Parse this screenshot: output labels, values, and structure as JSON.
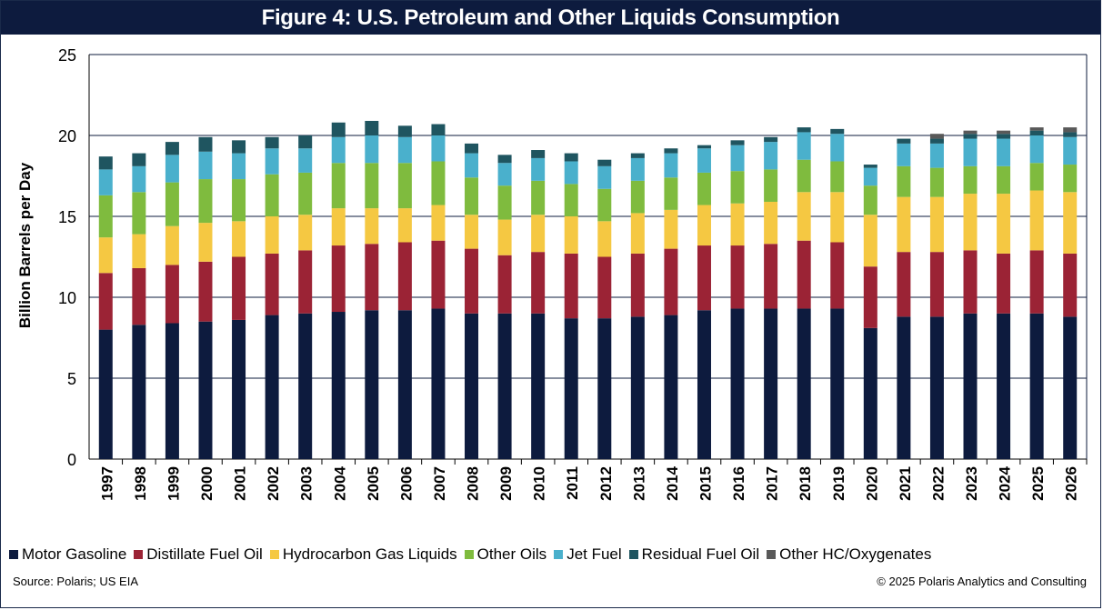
{
  "title": "Figure 4: U.S. Petroleum and Other Liquids Consumption",
  "source": "Source: Polaris; US EIA",
  "credit": "© 2025 Polaris Analytics and Consulting",
  "chart_data": {
    "type": "bar",
    "stacked": true,
    "title": "Figure 4: U.S. Petroleum and Other Liquids Consumption",
    "xlabel": "",
    "ylabel": "Billion Barrels per Day",
    "ylim": [
      0,
      25
    ],
    "yticks": [
      "0",
      "5",
      "10",
      "15",
      "20",
      "25"
    ],
    "grid": "horizontal",
    "legend_position": "bottom",
    "categories": [
      "1997",
      "1998",
      "1999",
      "2000",
      "2001",
      "2002",
      "2003",
      "2004",
      "2005",
      "2006",
      "2007",
      "2008",
      "2009",
      "2010",
      "2011",
      "2012",
      "2013",
      "2014",
      "2015",
      "2016",
      "2017",
      "2018",
      "2019",
      "2020",
      "2021",
      "2022",
      "2023",
      "2024",
      "2025",
      "2026"
    ],
    "series": [
      {
        "name": "Motor Gasoline",
        "color": "#0d1b3e",
        "values": [
          8.0,
          8.3,
          8.4,
          8.5,
          8.6,
          8.9,
          9.0,
          9.1,
          9.2,
          9.2,
          9.3,
          9.0,
          9.0,
          9.0,
          8.7,
          8.7,
          8.8,
          8.9,
          9.2,
          9.3,
          9.3,
          9.3,
          9.3,
          8.1,
          8.8,
          8.8,
          9.0,
          9.0,
          9.0,
          8.8
        ]
      },
      {
        "name": "Distillate Fuel Oil",
        "color": "#9b2335",
        "values": [
          3.5,
          3.5,
          3.6,
          3.7,
          3.9,
          3.8,
          3.9,
          4.1,
          4.1,
          4.2,
          4.2,
          4.0,
          3.6,
          3.8,
          4.0,
          3.8,
          3.9,
          4.1,
          4.0,
          3.9,
          4.0,
          4.2,
          4.1,
          3.8,
          4.0,
          4.0,
          3.9,
          3.7,
          3.9,
          3.9
        ]
      },
      {
        "name": "Hydrocarbon Gas Liquids",
        "color": "#f5c842",
        "values": [
          2.2,
          2.1,
          2.4,
          2.4,
          2.2,
          2.3,
          2.2,
          2.3,
          2.2,
          2.1,
          2.2,
          2.1,
          2.2,
          2.3,
          2.3,
          2.2,
          2.5,
          2.4,
          2.5,
          2.6,
          2.6,
          3.0,
          3.1,
          3.2,
          3.4,
          3.4,
          3.5,
          3.7,
          3.7,
          3.8
        ]
      },
      {
        "name": "Other Oils",
        "color": "#7fbb3e",
        "values": [
          2.6,
          2.6,
          2.7,
          2.7,
          2.6,
          2.6,
          2.6,
          2.8,
          2.8,
          2.8,
          2.7,
          2.3,
          2.1,
          2.1,
          2.0,
          2.0,
          2.0,
          2.0,
          2.0,
          2.0,
          2.0,
          2.0,
          1.9,
          1.8,
          1.9,
          1.8,
          1.7,
          1.7,
          1.7,
          1.7
        ]
      },
      {
        "name": "Jet Fuel",
        "color": "#4ab0cc",
        "values": [
          1.6,
          1.6,
          1.7,
          1.7,
          1.6,
          1.6,
          1.5,
          1.6,
          1.7,
          1.6,
          1.6,
          1.5,
          1.4,
          1.4,
          1.4,
          1.4,
          1.4,
          1.5,
          1.5,
          1.6,
          1.7,
          1.7,
          1.7,
          1.1,
          1.4,
          1.5,
          1.7,
          1.7,
          1.7,
          1.7
        ]
      },
      {
        "name": "Residual Fuel Oil",
        "color": "#1f5560",
        "values": [
          0.8,
          0.8,
          0.8,
          0.9,
          0.8,
          0.7,
          0.8,
          0.9,
          0.9,
          0.7,
          0.7,
          0.6,
          0.5,
          0.5,
          0.5,
          0.4,
          0.3,
          0.3,
          0.2,
          0.3,
          0.3,
          0.3,
          0.3,
          0.2,
          0.3,
          0.3,
          0.3,
          0.3,
          0.3,
          0.3
        ]
      },
      {
        "name": "Other HC/Oxygenates",
        "color": "#595959",
        "values": [
          0,
          0,
          0,
          0,
          0,
          0,
          0,
          0,
          0,
          0,
          0,
          0,
          0,
          0,
          0,
          0,
          0,
          0,
          0,
          0,
          0,
          0,
          0,
          0,
          0,
          0.3,
          0.2,
          0.2,
          0.2,
          0.3
        ]
      }
    ]
  }
}
